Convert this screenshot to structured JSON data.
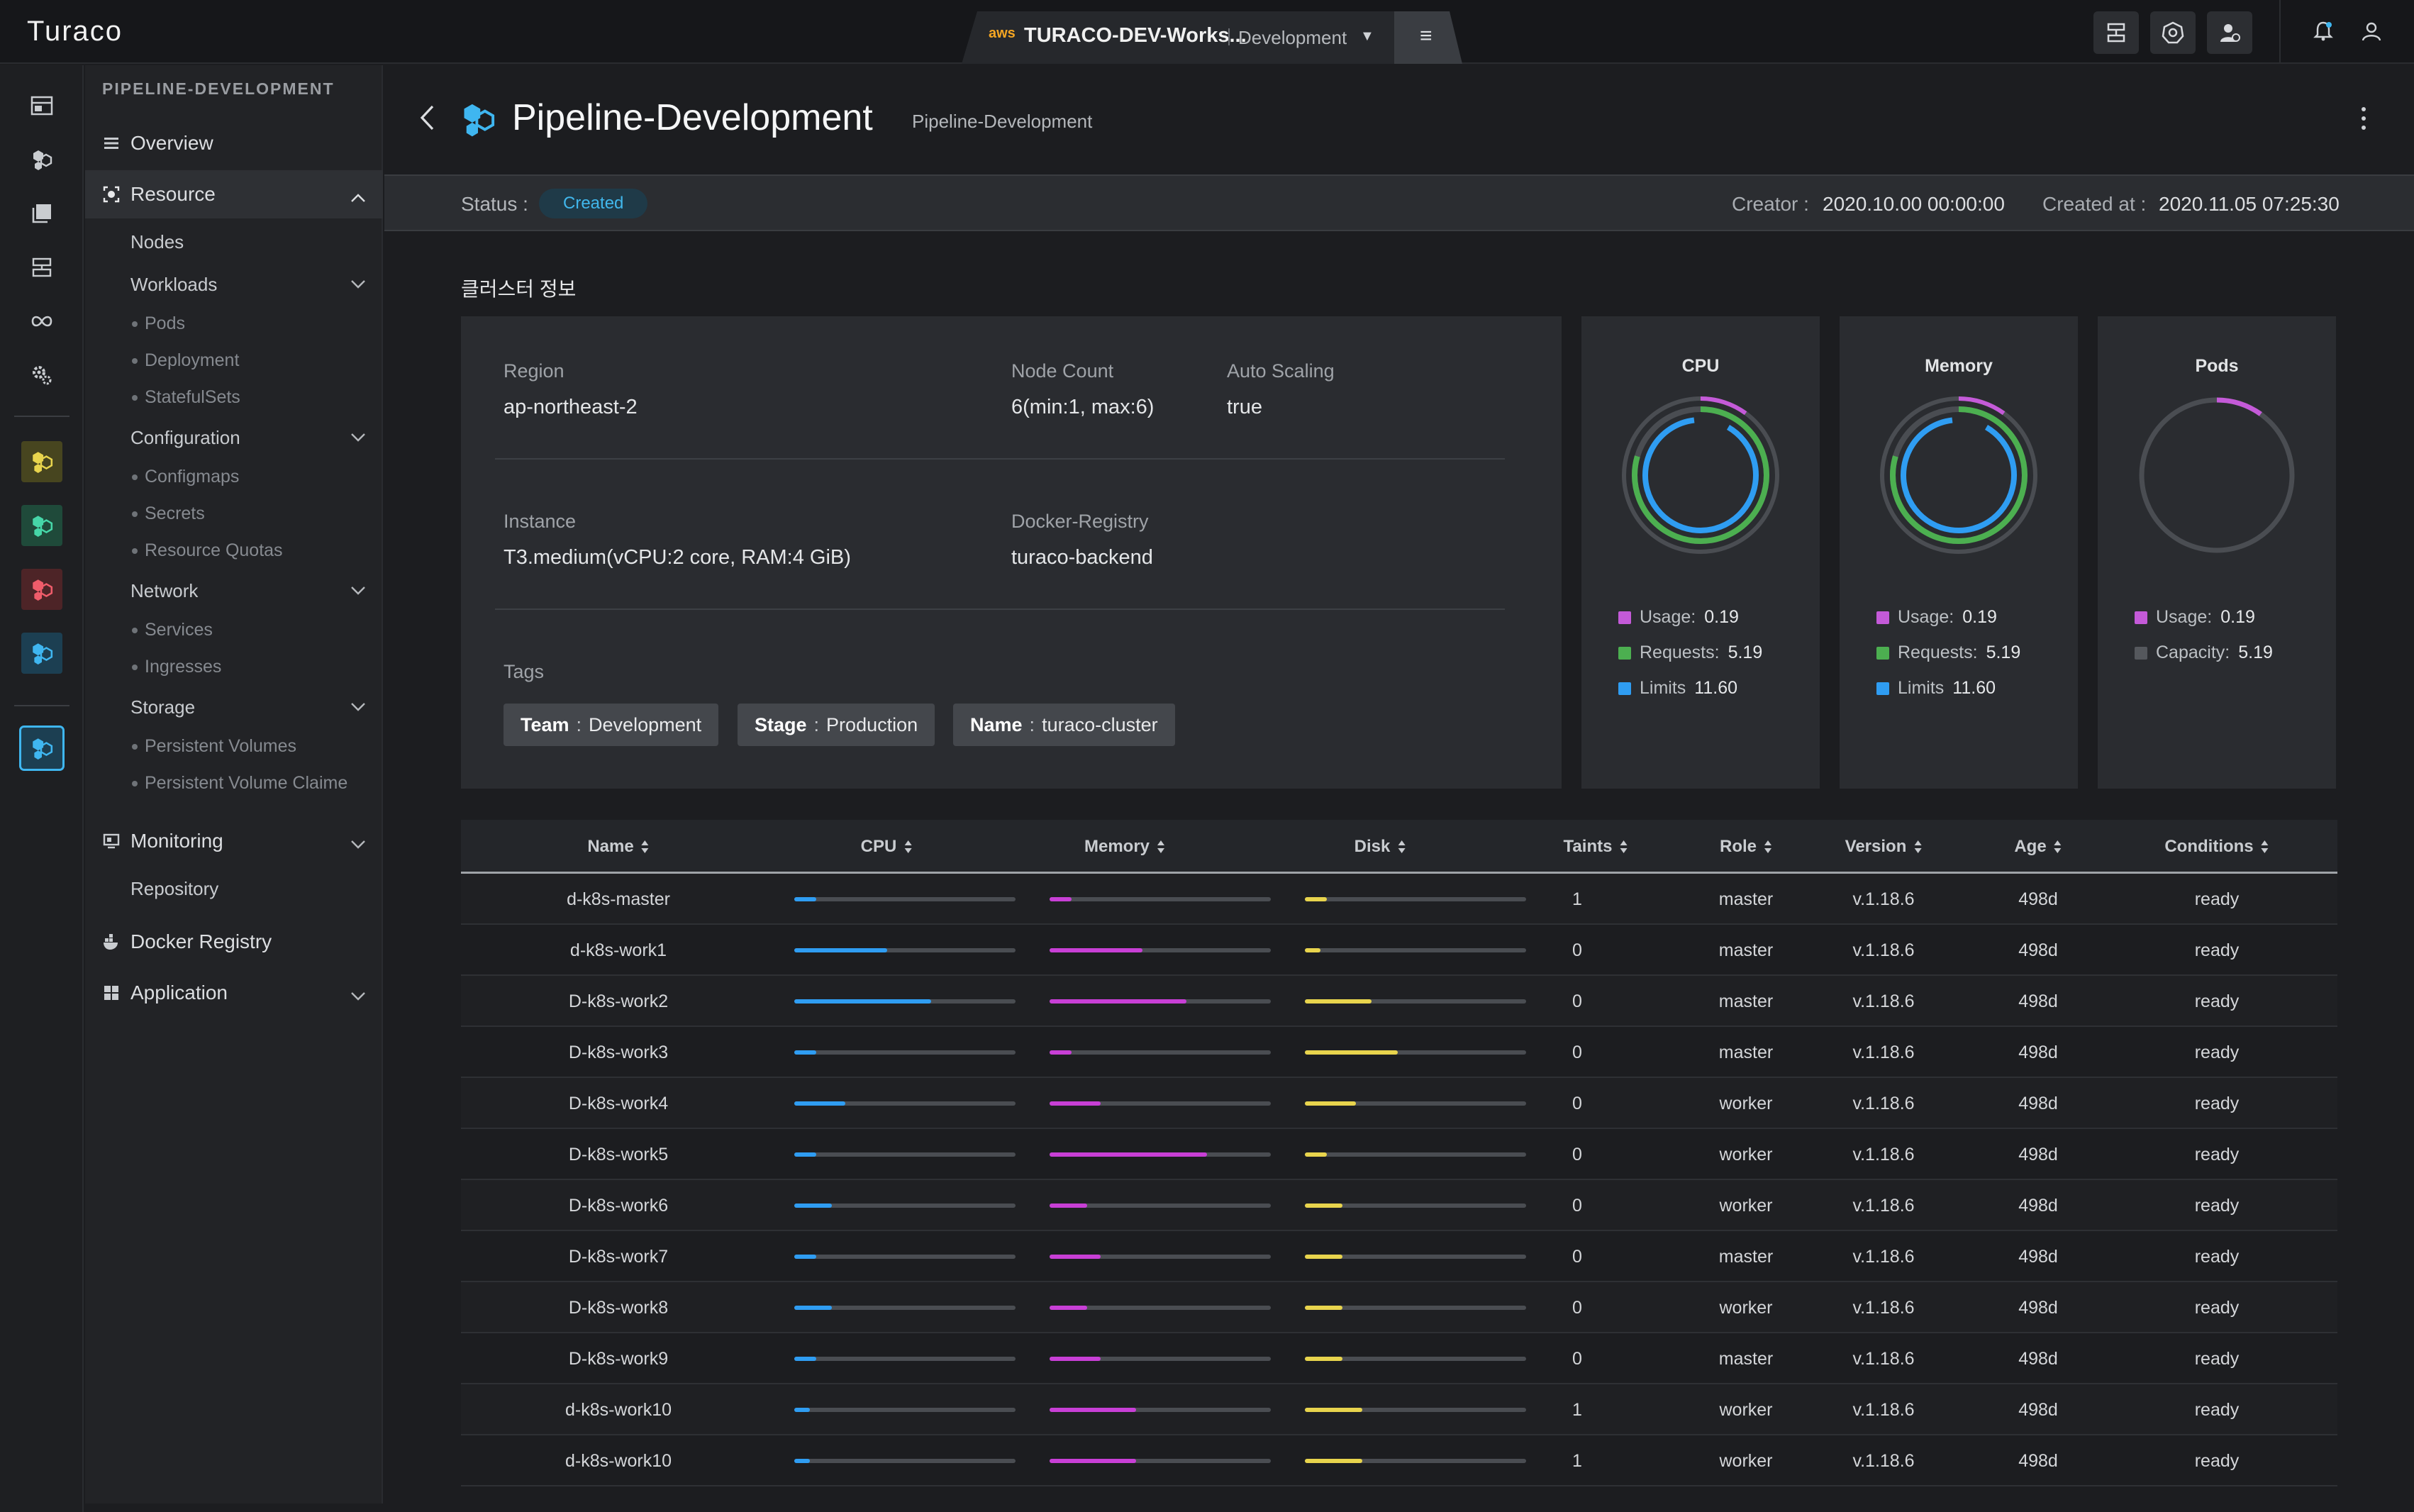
{
  "app": {
    "logo": "Turaco"
  },
  "workspace": {
    "provider": "aws",
    "name": "TURACO-DEV-Works...",
    "env": "Development"
  },
  "nav": {
    "title": "PIPELINE-DEVELOPMENT",
    "overview": "Overview",
    "resource": "Resource",
    "nodes": "Nodes",
    "workloads": "Workloads",
    "pods": "Pods",
    "deployment": "Deployment",
    "statefulsets": "StatefulSets",
    "configuration": "Configuration",
    "configmaps": "Configmaps",
    "secrets": "Secrets",
    "resource_quotas": "Resource Quotas",
    "network": "Network",
    "services": "Services",
    "ingresses": "Ingresses",
    "storage": "Storage",
    "pv": "Persistent Volumes",
    "pvc": "Persistent Volume Claime",
    "monitoring": "Monitoring",
    "repository": "Repository",
    "docker_registry": "Docker Registry",
    "application": "Application"
  },
  "page": {
    "title": "Pipeline-Development",
    "subtitle": "Pipeline-Development",
    "status_label": "Status :",
    "status": "Created",
    "creator_label": "Creator :",
    "creator": "2020.10.00 00:00:00",
    "created_label": "Created at :",
    "created": "2020.11.05 07:25:30"
  },
  "cluster": {
    "section_title": "클러스터 정보",
    "region_label": "Region",
    "region": "ap-northeast-2",
    "node_count_label": "Node Count",
    "node_count": "6(min:1, max:6)",
    "auto_scaling_label": "Auto Scaling",
    "auto_scaling": "true",
    "instance_label": "Instance",
    "instance": "T3.medium(vCPU:2 core, RAM:4 GiB)",
    "registry_label": "Docker-Registry",
    "registry": "turaco-backend",
    "tags_label": "Tags",
    "tags": [
      {
        "key": "Team",
        "value": "Development"
      },
      {
        "key": "Stage",
        "value": "Production"
      },
      {
        "key": "Name",
        "value": "turaco-cluster"
      }
    ]
  },
  "gauges": [
    {
      "title": "CPU",
      "items": [
        {
          "label": "Usage:",
          "value": "0.19",
          "color": "#c45ad8"
        },
        {
          "label": "Requests:",
          "value": "5.19",
          "color": "#4caf50"
        },
        {
          "label": "Limits",
          "value": "11.60",
          "color": "#2f9df2"
        }
      ]
    },
    {
      "title": "Memory",
      "items": [
        {
          "label": "Usage:",
          "value": "0.19",
          "color": "#c45ad8"
        },
        {
          "label": "Requests:",
          "value": "5.19",
          "color": "#4caf50"
        },
        {
          "label": "Limits",
          "value": "11.60",
          "color": "#2f9df2"
        }
      ]
    },
    {
      "title": "Pods",
      "items": [
        {
          "label": "Usage:",
          "value": "0.19",
          "color": "#c45ad8"
        },
        {
          "label": "Capacity:",
          "value": "5.19",
          "color": "#55585d"
        }
      ]
    }
  ],
  "table": {
    "headers": [
      "Name",
      "CPU",
      "Memory",
      "Disk",
      "Taints",
      "Role",
      "Version",
      "Age",
      "Conditions"
    ],
    "rows": [
      {
        "name": "d-k8s-master",
        "cpu": 0.1,
        "mem": 0.1,
        "disk": 0.1,
        "taints": "1",
        "role": "master",
        "version": "v.1.18.6",
        "age": "498d",
        "cond": "ready"
      },
      {
        "name": "d-k8s-work1",
        "cpu": 0.42,
        "mem": 0.42,
        "disk": 0.07,
        "taints": "0",
        "role": "master",
        "version": "v.1.18.6",
        "age": "498d",
        "cond": "ready"
      },
      {
        "name": "D-k8s-work2",
        "cpu": 0.62,
        "mem": 0.62,
        "disk": 0.3,
        "taints": "0",
        "role": "master",
        "version": "v.1.18.6",
        "age": "498d",
        "cond": "ready"
      },
      {
        "name": "D-k8s-work3",
        "cpu": 0.1,
        "mem": 0.1,
        "disk": 0.42,
        "taints": "0",
        "role": "master",
        "version": "v.1.18.6",
        "age": "498d",
        "cond": "ready"
      },
      {
        "name": "D-k8s-work4",
        "cpu": 0.23,
        "mem": 0.23,
        "disk": 0.23,
        "taints": "0",
        "role": "worker",
        "version": "v.1.18.6",
        "age": "498d",
        "cond": "ready"
      },
      {
        "name": "D-k8s-work5",
        "cpu": 0.1,
        "mem": 0.71,
        "disk": 0.1,
        "taints": "0",
        "role": "worker",
        "version": "v.1.18.6",
        "age": "498d",
        "cond": "ready"
      },
      {
        "name": "D-k8s-work6",
        "cpu": 0.17,
        "mem": 0.17,
        "disk": 0.17,
        "taints": "0",
        "role": "worker",
        "version": "v.1.18.6",
        "age": "498d",
        "cond": "ready"
      },
      {
        "name": "D-k8s-work7",
        "cpu": 0.1,
        "mem": 0.23,
        "disk": 0.17,
        "taints": "0",
        "role": "master",
        "version": "v.1.18.6",
        "age": "498d",
        "cond": "ready"
      },
      {
        "name": "D-k8s-work8",
        "cpu": 0.17,
        "mem": 0.17,
        "disk": 0.17,
        "taints": "0",
        "role": "worker",
        "version": "v.1.18.6",
        "age": "498d",
        "cond": "ready"
      },
      {
        "name": "D-k8s-work9",
        "cpu": 0.1,
        "mem": 0.23,
        "disk": 0.17,
        "taints": "0",
        "role": "master",
        "version": "v.1.18.6",
        "age": "498d",
        "cond": "ready"
      },
      {
        "name": "d-k8s-work10",
        "cpu": 0.07,
        "mem": 0.39,
        "disk": 0.26,
        "taints": "1",
        "role": "worker",
        "version": "v.1.18.6",
        "age": "498d",
        "cond": "ready"
      },
      {
        "name": "d-k8s-work10",
        "cpu": 0.07,
        "mem": 0.39,
        "disk": 0.26,
        "taints": "1",
        "role": "worker",
        "version": "v.1.18.6",
        "age": "498d",
        "cond": "ready"
      }
    ]
  },
  "colors": {
    "cpu": "#2f9df2",
    "memory": "#c83fd6",
    "disk": "#e8d44d",
    "accent": "#41b7ec"
  }
}
